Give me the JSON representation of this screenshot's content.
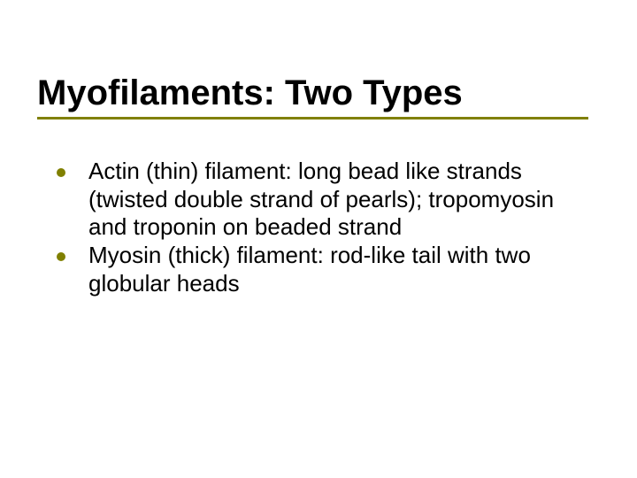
{
  "slide": {
    "title": "Myofilaments: Two Types",
    "title_color": "#000000",
    "title_fontsize": 40,
    "title_fontweight": "bold",
    "underline_color": "#808000",
    "underline_height": 3,
    "background_color": "#ffffff",
    "bullets": [
      {
        "text": "Actin (thin) filament: long bead like strands (twisted double strand of pearls); tropomyosin and troponin on beaded strand",
        "dot_color": "#808000"
      },
      {
        "text": "Myosin (thick) filament: rod-like tail with two globular heads",
        "dot_color": "#808000"
      }
    ],
    "body_fontsize": 26,
    "body_color": "#000000"
  }
}
